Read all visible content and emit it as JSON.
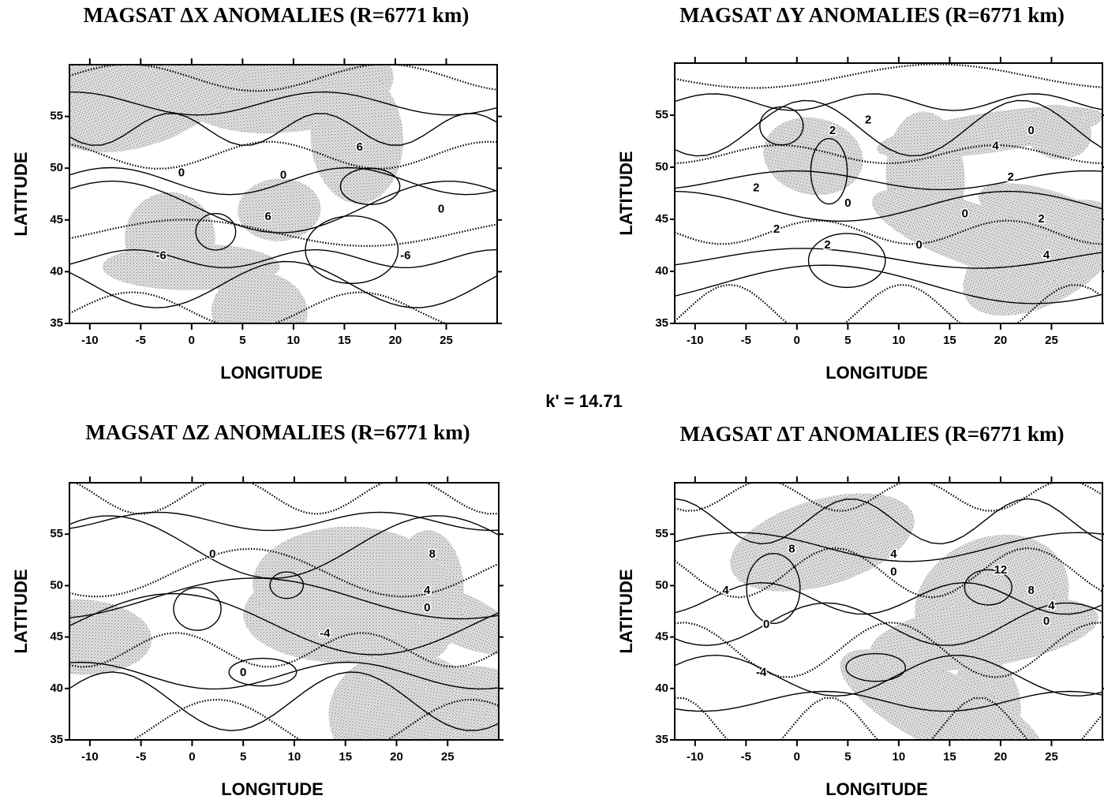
{
  "figure_label": "k' = 14.71",
  "chart_data": [
    {
      "type": "contour",
      "title": "MAGSAT ΔX  ANOMALIES (R=6771 km)",
      "x_label": "LONGITUDE",
      "y_label": "LATITUDE",
      "xlim": [
        -12,
        30
      ],
      "ylim": [
        35,
        60
      ],
      "xticks": [
        -10,
        -5,
        0,
        5,
        10,
        15,
        20,
        25
      ],
      "yticks": [
        35,
        40,
        45,
        50,
        55
      ],
      "contour_labels": [
        "6",
        "0",
        "0",
        "0",
        "6",
        "-6",
        "-6"
      ]
    },
    {
      "type": "contour",
      "title": "MAGSAT ΔY ANOMALIES (R=6771 km)",
      "x_label": "LONGITUDE",
      "y_label": "LATITUDE",
      "xlim": [
        -12,
        30
      ],
      "ylim": [
        35,
        60
      ],
      "xticks": [
        -10,
        -5,
        0,
        5,
        10,
        15,
        20,
        25
      ],
      "yticks": [
        35,
        40,
        45,
        50,
        55
      ],
      "contour_labels": [
        "2",
        "2",
        "4",
        "2",
        "0",
        "0",
        "2",
        "2",
        "2",
        "0",
        "2",
        "4",
        "0"
      ]
    },
    {
      "type": "contour",
      "title": "MAGSAT ΔZ  ANOMALIES (R=6771 km)",
      "x_label": "LONGITUDE",
      "y_label": "LATITUDE",
      "xlim": [
        -12,
        30
      ],
      "ylim": [
        35,
        60
      ],
      "xticks": [
        -10,
        -5,
        0,
        5,
        10,
        15,
        20,
        25
      ],
      "yticks": [
        35,
        40,
        45,
        50,
        55
      ],
      "contour_labels": [
        "0",
        "8",
        "4",
        "0",
        "-4",
        "0"
      ]
    },
    {
      "type": "contour",
      "title": "MAGSAT ΔT ANOMALIES (R=6771 km)",
      "x_label": "LONGITUDE",
      "y_label": "LATITUDE",
      "xlim": [
        -12,
        30
      ],
      "ylim": [
        35,
        60
      ],
      "xticks": [
        -10,
        -5,
        0,
        5,
        10,
        15,
        20,
        25
      ],
      "yticks": [
        35,
        40,
        45,
        50,
        55
      ],
      "contour_labels": [
        "8",
        "4",
        "0",
        "12",
        "8",
        "4",
        "0",
        "4",
        "0",
        "-4"
      ]
    }
  ]
}
